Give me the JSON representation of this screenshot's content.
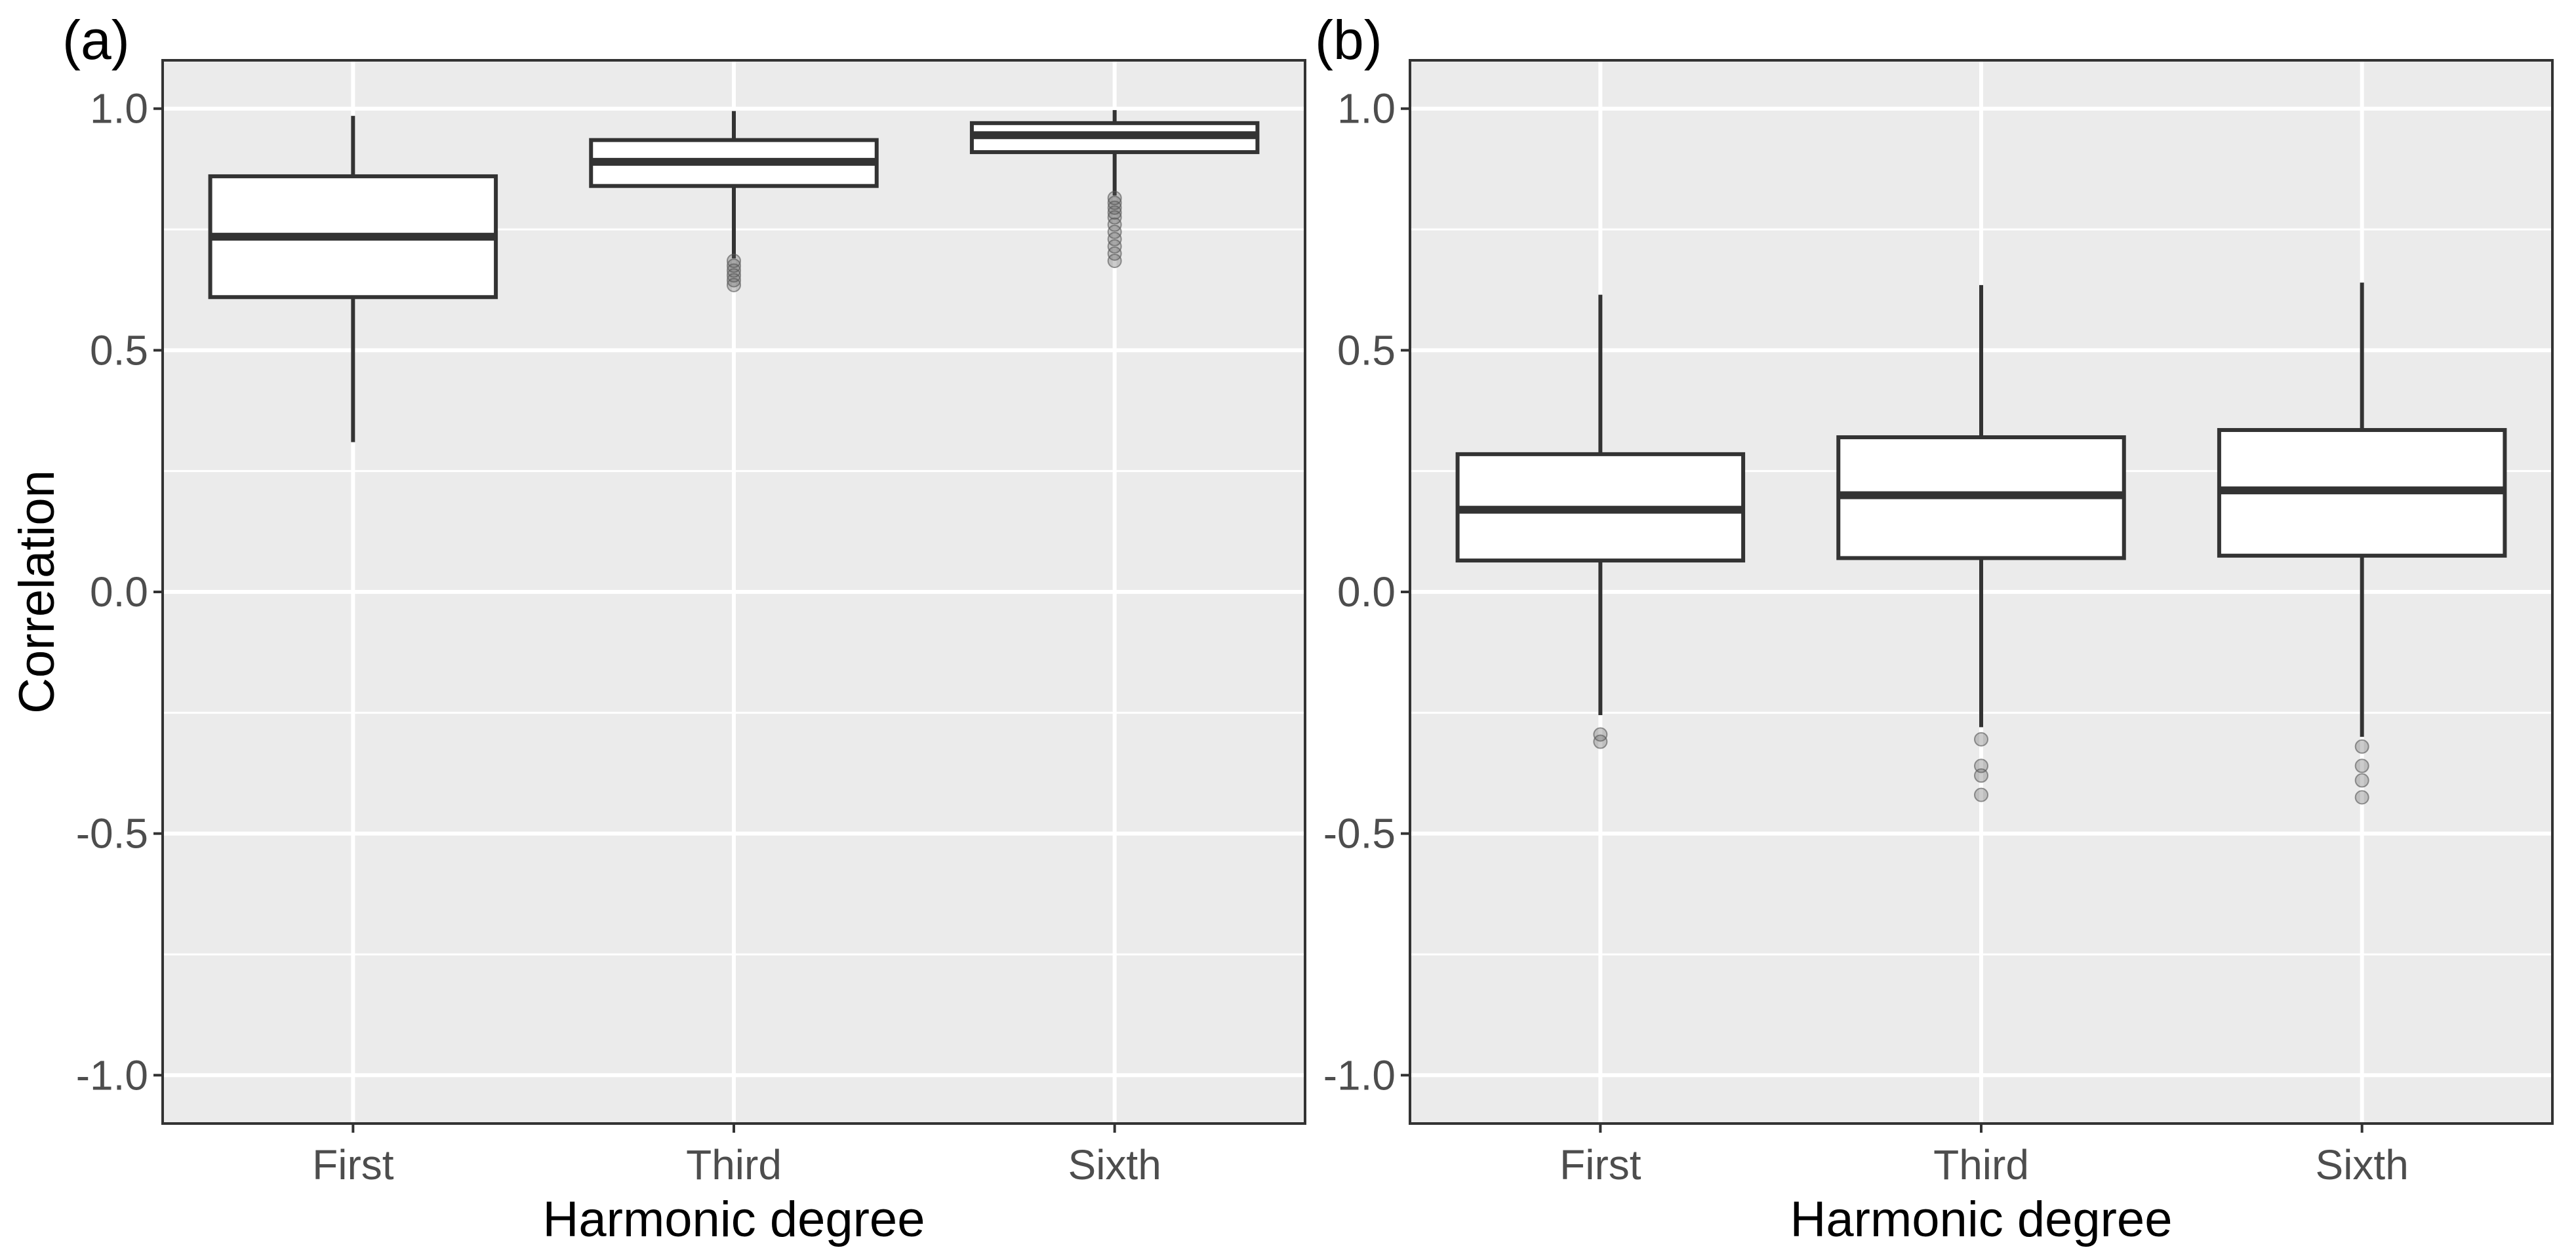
{
  "colors": {
    "panel_background": "#ebebeb",
    "grid": "#ffffff",
    "box_fill": "#ffffff",
    "box_line": "#333333",
    "outlier": "#555555",
    "tick_text": "#4d4d4d"
  },
  "chart_data": [
    {
      "type": "boxplot",
      "panel_label": "(a)",
      "xlabel": "Harmonic degree",
      "ylabel": "Correlation",
      "ylim": [
        -1.1,
        1.1
      ],
      "y_ticks": [
        1.0,
        0.5,
        0.0,
        -0.5,
        -1.0
      ],
      "y_tick_labels": [
        "1.0",
        "0.5",
        "0.0",
        "-0.5",
        "-1.0"
      ],
      "y_minor_grid": [
        0.75,
        0.25,
        -0.25,
        -0.75
      ],
      "categories": [
        "First",
        "Third",
        "Sixth"
      ],
      "boxes": [
        {
          "category": "First",
          "whisker_low": 0.31,
          "q1": 0.61,
          "median": 0.735,
          "q3": 0.86,
          "whisker_high": 0.985,
          "outliers": []
        },
        {
          "category": "Third",
          "whisker_low": 0.69,
          "q1": 0.84,
          "median": 0.89,
          "q3": 0.935,
          "whisker_high": 0.995,
          "outliers": [
            0.685,
            0.675,
            0.665,
            0.655,
            0.645,
            0.635
          ]
        },
        {
          "category": "Sixth",
          "whisker_low": 0.82,
          "q1": 0.91,
          "median": 0.945,
          "q3": 0.97,
          "whisker_high": 0.997,
          "outliers": [
            0.815,
            0.805,
            0.795,
            0.785,
            0.775,
            0.76,
            0.745,
            0.73,
            0.715,
            0.7,
            0.685
          ]
        }
      ]
    },
    {
      "type": "boxplot",
      "panel_label": "(b)",
      "xlabel": "Harmonic degree",
      "ylabel": "",
      "ylim": [
        -1.1,
        1.1
      ],
      "y_ticks": [
        1.0,
        0.5,
        0.0,
        -0.5,
        -1.0
      ],
      "y_tick_labels": [
        "1.0",
        "0.5",
        "0.0",
        "-0.5",
        "-1.0"
      ],
      "y_minor_grid": [
        0.75,
        0.25,
        -0.25,
        -0.75
      ],
      "categories": [
        "First",
        "Third",
        "Sixth"
      ],
      "boxes": [
        {
          "category": "First",
          "whisker_low": -0.255,
          "q1": 0.065,
          "median": 0.17,
          "q3": 0.285,
          "whisker_high": 0.615,
          "outliers": [
            -0.295,
            -0.31
          ]
        },
        {
          "category": "Third",
          "whisker_low": -0.28,
          "q1": 0.07,
          "median": 0.2,
          "q3": 0.32,
          "whisker_high": 0.635,
          "outliers": [
            -0.305,
            -0.36,
            -0.38,
            -0.42
          ]
        },
        {
          "category": "Sixth",
          "whisker_low": -0.3,
          "q1": 0.075,
          "median": 0.21,
          "q3": 0.335,
          "whisker_high": 0.64,
          "outliers": [
            -0.32,
            -0.36,
            -0.39,
            -0.425
          ]
        }
      ]
    }
  ]
}
